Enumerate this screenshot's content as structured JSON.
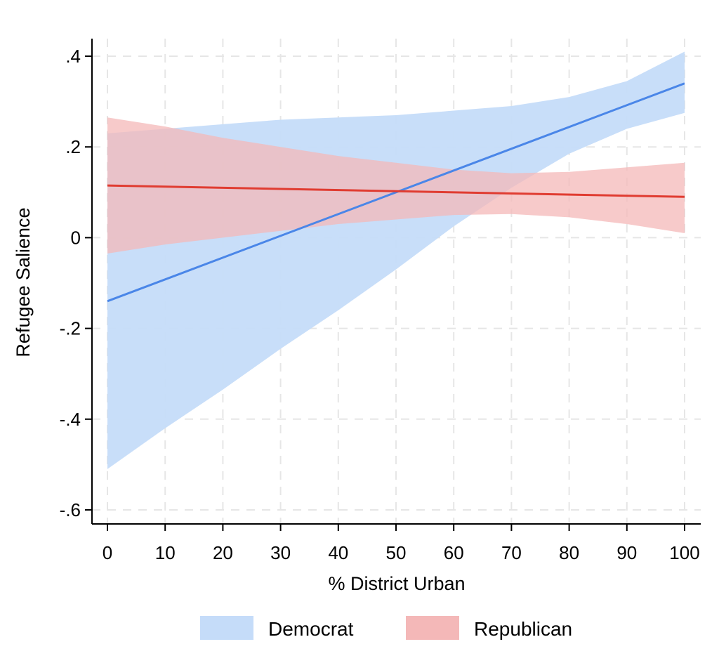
{
  "chart_data": {
    "type": "line",
    "xlabel": "% District Urban",
    "ylabel": "Refugee Salience",
    "xlim": [
      0,
      100
    ],
    "ylim": [
      -0.6,
      0.4
    ],
    "xticks": [
      0,
      10,
      20,
      30,
      40,
      50,
      60,
      70,
      80,
      90,
      100
    ],
    "xtick_labels": [
      "0",
      "10",
      "20",
      "30",
      "40",
      "50",
      "60",
      "70",
      "80",
      "90",
      "100"
    ],
    "yticks": [
      0.4,
      0.2,
      0,
      -0.2,
      -0.4,
      -0.6
    ],
    "ytick_labels": [
      ".4",
      ".2",
      "0",
      "-.2",
      "-.4",
      "-.6"
    ],
    "grid": true,
    "legend_position": "bottom",
    "series": [
      {
        "name": "Democrat",
        "line_color": "#4a86e8",
        "band_color": "#c5dcf9",
        "x": [
          0,
          100
        ],
        "y": [
          -0.14,
          0.34
        ],
        "ci_x": [
          0,
          10,
          20,
          30,
          40,
          50,
          60,
          70,
          80,
          90,
          100
        ],
        "ci_upper": [
          0.23,
          0.24,
          0.25,
          0.26,
          0.265,
          0.27,
          0.28,
          0.29,
          0.31,
          0.345,
          0.41
        ],
        "ci_lower": [
          -0.51,
          -0.42,
          -0.335,
          -0.245,
          -0.16,
          -0.07,
          0.025,
          0.11,
          0.185,
          0.24,
          0.275
        ]
      },
      {
        "name": "Republican",
        "line_color": "#e03c31",
        "band_color": "#f4b8b8",
        "x": [
          0,
          100
        ],
        "y": [
          0.115,
          0.09
        ],
        "ci_x": [
          0,
          10,
          20,
          30,
          40,
          50,
          60,
          70,
          80,
          90,
          100
        ],
        "ci_upper": [
          0.265,
          0.245,
          0.22,
          0.2,
          0.18,
          0.165,
          0.15,
          0.142,
          0.145,
          0.155,
          0.165
        ],
        "ci_lower": [
          -0.035,
          -0.015,
          0.0,
          0.015,
          0.03,
          0.04,
          0.05,
          0.052,
          0.045,
          0.03,
          0.01
        ]
      }
    ]
  }
}
